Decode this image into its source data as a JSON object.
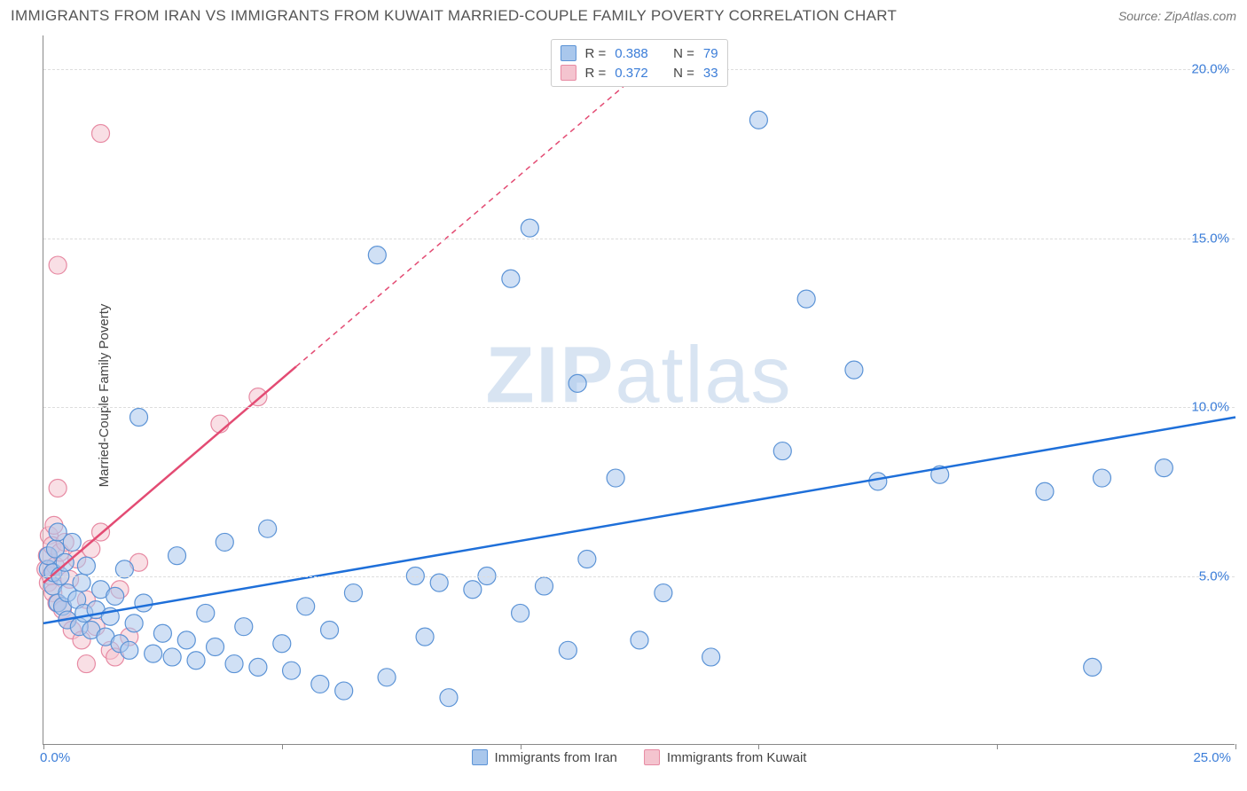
{
  "title": "IMMIGRANTS FROM IRAN VS IMMIGRANTS FROM KUWAIT MARRIED-COUPLE FAMILY POVERTY CORRELATION CHART",
  "source_label": "Source:",
  "source_site": "ZipAtlas.com",
  "ylabel": "Married-Couple Family Poverty",
  "watermark_a": "ZIP",
  "watermark_b": "atlas",
  "chart": {
    "type": "scatter-correlation",
    "xlim": [
      0,
      25
    ],
    "ylim": [
      0,
      21
    ],
    "xticks": [
      0,
      5,
      10,
      15,
      20,
      25
    ],
    "yticks": [
      5,
      10,
      15,
      20
    ],
    "ytick_labels": [
      "5.0%",
      "10.0%",
      "15.0%",
      "20.0%"
    ],
    "x_start_label": "0.0%",
    "x_end_label": "25.0%",
    "background_color": "#ffffff",
    "grid_color": "#dddddd",
    "axis_color": "#888888",
    "tick_label_color": "#3b7dd8",
    "marker_radius": 10,
    "marker_opacity": 0.55,
    "line_width": 2.5,
    "series": [
      {
        "name": "Immigrants from Iran",
        "marker_fill": "#a9c7ec",
        "marker_stroke": "#5b93d6",
        "line_color": "#1e6fd9",
        "r": "0.388",
        "n": "79",
        "trend": {
          "x1": 0,
          "y1": 3.6,
          "x2": 25,
          "y2": 9.7
        },
        "points": [
          [
            0.1,
            5.2
          ],
          [
            0.1,
            5.6
          ],
          [
            0.2,
            4.7
          ],
          [
            0.2,
            5.1
          ],
          [
            0.25,
            5.8
          ],
          [
            0.3,
            4.2
          ],
          [
            0.3,
            6.3
          ],
          [
            0.35,
            5.0
          ],
          [
            0.4,
            4.1
          ],
          [
            0.45,
            5.4
          ],
          [
            0.5,
            3.7
          ],
          [
            0.5,
            4.5
          ],
          [
            0.6,
            6.0
          ],
          [
            0.7,
            4.3
          ],
          [
            0.75,
            3.5
          ],
          [
            0.8,
            4.8
          ],
          [
            0.85,
            3.9
          ],
          [
            0.9,
            5.3
          ],
          [
            1.0,
            3.4
          ],
          [
            1.1,
            4.0
          ],
          [
            1.2,
            4.6
          ],
          [
            1.3,
            3.2
          ],
          [
            1.4,
            3.8
          ],
          [
            1.5,
            4.4
          ],
          [
            1.6,
            3.0
          ],
          [
            1.7,
            5.2
          ],
          [
            1.8,
            2.8
          ],
          [
            1.9,
            3.6
          ],
          [
            2.0,
            9.7
          ],
          [
            2.1,
            4.2
          ],
          [
            2.3,
            2.7
          ],
          [
            2.5,
            3.3
          ],
          [
            2.7,
            2.6
          ],
          [
            2.8,
            5.6
          ],
          [
            3.0,
            3.1
          ],
          [
            3.2,
            2.5
          ],
          [
            3.4,
            3.9
          ],
          [
            3.6,
            2.9
          ],
          [
            3.8,
            6.0
          ],
          [
            4.0,
            2.4
          ],
          [
            4.2,
            3.5
          ],
          [
            4.5,
            2.3
          ],
          [
            4.7,
            6.4
          ],
          [
            5.0,
            3.0
          ],
          [
            5.2,
            2.2
          ],
          [
            5.5,
            4.1
          ],
          [
            5.8,
            1.8
          ],
          [
            6.0,
            3.4
          ],
          [
            6.3,
            1.6
          ],
          [
            6.5,
            4.5
          ],
          [
            7.0,
            14.5
          ],
          [
            7.2,
            2.0
          ],
          [
            7.8,
            5.0
          ],
          [
            8.0,
            3.2
          ],
          [
            8.3,
            4.8
          ],
          [
            8.5,
            1.4
          ],
          [
            9.0,
            4.6
          ],
          [
            9.3,
            5.0
          ],
          [
            9.8,
            13.8
          ],
          [
            10.0,
            3.9
          ],
          [
            10.2,
            15.3
          ],
          [
            10.5,
            4.7
          ],
          [
            11.0,
            2.8
          ],
          [
            11.2,
            10.7
          ],
          [
            11.4,
            5.5
          ],
          [
            12.0,
            7.9
          ],
          [
            12.5,
            3.1
          ],
          [
            13.0,
            4.5
          ],
          [
            14.0,
            2.6
          ],
          [
            15.0,
            18.5
          ],
          [
            15.5,
            8.7
          ],
          [
            16.0,
            13.2
          ],
          [
            17.0,
            11.1
          ],
          [
            17.5,
            7.8
          ],
          [
            18.8,
            8.0
          ],
          [
            21.0,
            7.5
          ],
          [
            22.2,
            7.9
          ],
          [
            22.0,
            2.3
          ],
          [
            23.5,
            8.2
          ]
        ]
      },
      {
        "name": "Immigrants from Kuwait",
        "marker_fill": "#f4c4cf",
        "marker_stroke": "#e78aa3",
        "line_color": "#e34b73",
        "r": "0.372",
        "n": "33",
        "trend_solid": {
          "x1": 0,
          "y1": 4.8,
          "x2": 5.3,
          "y2": 11.2
        },
        "trend_dash": {
          "x1": 5.3,
          "y1": 11.2,
          "x2": 13.0,
          "y2": 20.5
        },
        "points": [
          [
            0.05,
            5.2
          ],
          [
            0.08,
            5.6
          ],
          [
            0.1,
            4.8
          ],
          [
            0.12,
            6.2
          ],
          [
            0.15,
            5.0
          ],
          [
            0.18,
            5.9
          ],
          [
            0.2,
            4.5
          ],
          [
            0.22,
            6.5
          ],
          [
            0.25,
            5.3
          ],
          [
            0.28,
            4.2
          ],
          [
            0.3,
            7.6
          ],
          [
            0.35,
            5.7
          ],
          [
            0.4,
            4.0
          ],
          [
            0.45,
            6.0
          ],
          [
            0.5,
            3.7
          ],
          [
            0.55,
            4.9
          ],
          [
            0.6,
            3.4
          ],
          [
            0.7,
            5.5
          ],
          [
            0.8,
            3.1
          ],
          [
            0.9,
            4.3
          ],
          [
            1.0,
            5.8
          ],
          [
            1.1,
            3.5
          ],
          [
            1.2,
            6.3
          ],
          [
            1.4,
            2.8
          ],
          [
            1.6,
            4.6
          ],
          [
            1.8,
            3.2
          ],
          [
            2.0,
            5.4
          ],
          [
            0.3,
            14.2
          ],
          [
            1.2,
            18.1
          ],
          [
            3.7,
            9.5
          ],
          [
            4.5,
            10.3
          ],
          [
            0.9,
            2.4
          ],
          [
            1.5,
            2.6
          ]
        ]
      }
    ]
  },
  "legend_bottom": [
    {
      "label": "Immigrants from Iran",
      "fill": "#a9c7ec",
      "stroke": "#5b93d6"
    },
    {
      "label": "Immigrants from Kuwait",
      "fill": "#f4c4cf",
      "stroke": "#e78aa3"
    }
  ]
}
